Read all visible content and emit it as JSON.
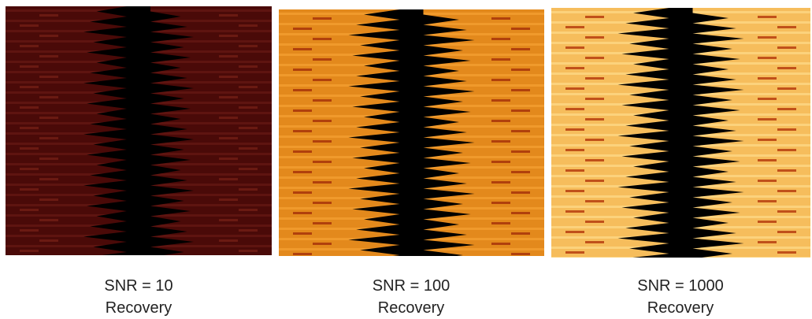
{
  "panels": [
    {
      "caption": "SNR = 10",
      "label": "Recovery"
    },
    {
      "caption": "SNR = 100",
      "label": "Recovery"
    },
    {
      "caption": "SNR = 1000",
      "label": "Recovery"
    }
  ]
}
